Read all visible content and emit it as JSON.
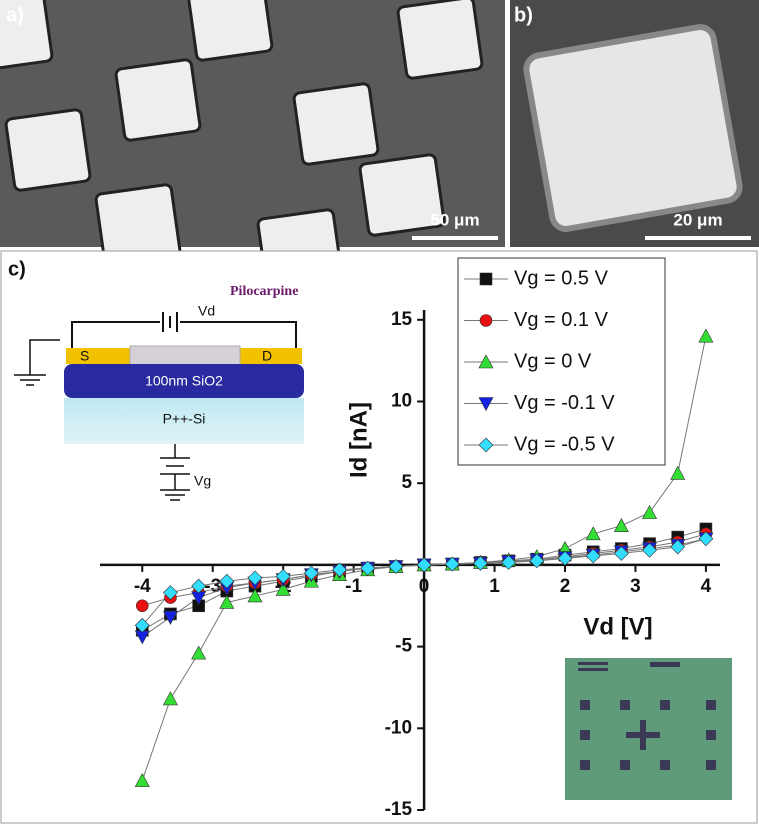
{
  "panels": {
    "a": {
      "label": "a)",
      "scale_bar": "50 μm"
    },
    "b": {
      "label": "b)",
      "scale_bar": "20 μm"
    },
    "c": {
      "label": "c)"
    }
  },
  "schematic": {
    "molecule": "Pilocarpine",
    "drain_voltage": "Vd",
    "source": "S",
    "drain": "D",
    "oxide": "100nm SiO2",
    "substrate": "P++-Si",
    "gate_voltage": "Vg"
  },
  "chart_data": {
    "type": "line",
    "x_label": "Vd [V]",
    "y_label": "Id [nA]",
    "x": [
      -4,
      -3.6,
      -3.2,
      -2.8,
      -2.4,
      -2,
      -1.6,
      -1.2,
      -0.8,
      -0.4,
      0,
      0.4,
      0.8,
      1.2,
      1.6,
      2,
      2.4,
      2.8,
      3.2,
      3.6,
      4
    ],
    "series": [
      {
        "name": "Vg = 0.5 V",
        "color": "#111111",
        "marker": "square",
        "values": [
          -4.0,
          -3.0,
          -2.5,
          -1.6,
          -1.3,
          -1.0,
          -0.7,
          -0.4,
          -0.2,
          -0.1,
          0,
          0.05,
          0.15,
          0.25,
          0.35,
          0.6,
          0.8,
          1.0,
          1.3,
          1.7,
          2.2
        ]
      },
      {
        "name": "Vg = 0.1 V",
        "color": "#e81010",
        "marker": "circle",
        "values": [
          -2.5,
          -2.0,
          -1.7,
          -1.3,
          -1.1,
          -0.9,
          -0.6,
          -0.4,
          -0.2,
          -0.1,
          0,
          0.05,
          0.15,
          0.2,
          0.3,
          0.5,
          0.7,
          0.9,
          1.1,
          1.4,
          1.9
        ]
      },
      {
        "name": "Vg = 0 V",
        "color": "#33dd33",
        "marker": "triangle-up",
        "values": [
          -13.2,
          -8.2,
          -5.4,
          -2.3,
          -1.9,
          -1.5,
          -1.0,
          -0.6,
          -0.3,
          -0.1,
          0,
          0.05,
          0.15,
          0.3,
          0.5,
          1.0,
          1.9,
          2.4,
          3.2,
          5.6,
          14.0
        ]
      },
      {
        "name": "Vg = -0.1 V",
        "color": "#1222e0",
        "marker": "triangle-down",
        "values": [
          -4.4,
          -3.2,
          -2.0,
          -1.4,
          -1.1,
          -0.9,
          -0.6,
          -0.4,
          -0.2,
          -0.1,
          0,
          0.05,
          0.1,
          0.2,
          0.3,
          0.45,
          0.6,
          0.8,
          1.0,
          1.2,
          1.6
        ]
      },
      {
        "name": "Vg = -0.5 V",
        "color": "#33ddff",
        "marker": "diamond",
        "values": [
          -3.7,
          -1.7,
          -1.3,
          -1.0,
          -0.8,
          -0.7,
          -0.5,
          -0.3,
          -0.2,
          -0.1,
          0,
          0.05,
          0.1,
          0.15,
          0.25,
          0.4,
          0.55,
          0.7,
          0.9,
          1.1,
          1.6
        ]
      }
    ],
    "xlim": [
      -4.6,
      4.2
    ],
    "ylim": [
      -15,
      15.6
    ],
    "xticks": [
      -4,
      -3,
      -2,
      -1,
      0,
      1,
      2,
      3,
      4
    ],
    "yticks": [
      -15,
      -10,
      -5,
      5,
      10,
      15
    ]
  }
}
